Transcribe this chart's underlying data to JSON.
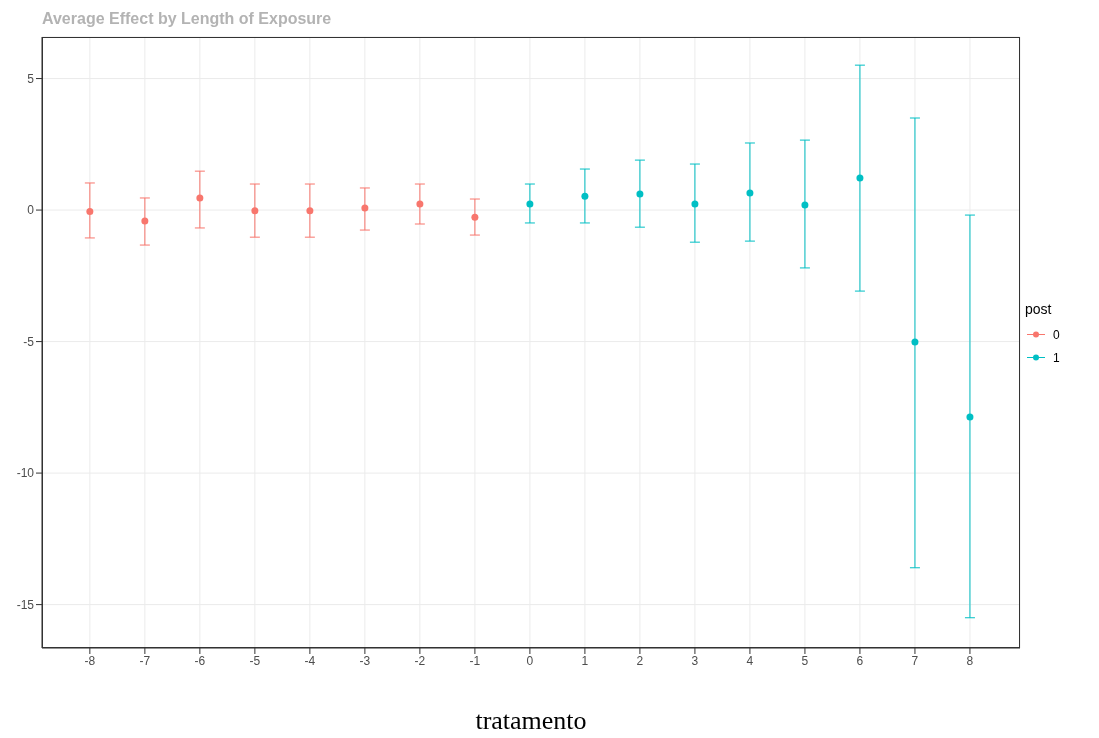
{
  "chart_data": {
    "type": "scatter",
    "title": "Average Effect by Length of Exposure",
    "xlabel": "tratamento",
    "legend_title": "post",
    "legend": "right",
    "grid": true,
    "marker": "circle",
    "xlim": [
      -8.87,
      8.91
    ],
    "xticks": [
      -8,
      -7,
      -6,
      -5,
      -4,
      -3,
      -2,
      -1,
      0,
      1,
      2,
      3,
      4,
      5,
      6,
      7,
      8
    ],
    "ylim": [
      -16.65,
      6.58
    ],
    "yticks": [
      5,
      0,
      -5,
      -10,
      -15
    ],
    "series": [
      {
        "name": "0",
        "color": "#f8766d",
        "x": [
          -8,
          -7,
          -6,
          -5,
          -4,
          -3,
          -2,
          -1
        ],
        "values": [
          -0.05,
          -0.42,
          0.46,
          -0.03,
          -0.03,
          0.08,
          0.23,
          -0.27
        ],
        "errors": [
          [
            -1.06,
            1.03
          ],
          [
            -1.33,
            0.46
          ],
          [
            -0.68,
            1.48
          ],
          [
            -1.03,
            0.99
          ],
          [
            -1.03,
            0.99
          ],
          [
            -0.76,
            0.84
          ],
          [
            -0.53,
            0.99
          ],
          [
            -0.95,
            0.42
          ]
        ]
      },
      {
        "name": "1",
        "color": "#00bfc4",
        "x": [
          0,
          1,
          2,
          3,
          4,
          5,
          6,
          7,
          8
        ],
        "values": [
          0.23,
          0.53,
          0.61,
          0.23,
          0.65,
          0.19,
          1.22,
          -5.02,
          -7.87
        ],
        "errors": [
          [
            -0.49,
            0.99
          ],
          [
            -0.49,
            1.56
          ],
          [
            -0.65,
            1.9
          ],
          [
            -1.22,
            1.75
          ],
          [
            -1.18,
            2.55
          ],
          [
            -2.2,
            2.66
          ],
          [
            -3.08,
            5.51
          ],
          [
            -13.6,
            3.5
          ],
          [
            -15.5,
            -0.19
          ]
        ]
      }
    ]
  }
}
